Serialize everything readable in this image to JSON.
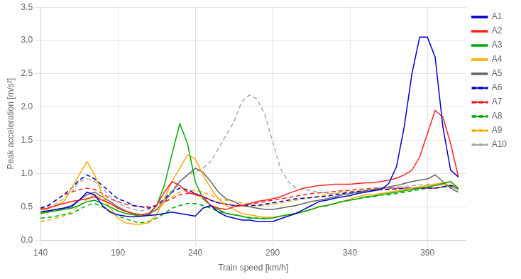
{
  "chart_data": {
    "type": "line",
    "x_label": "Train speed [km/h]",
    "y_label": "Peak acceleration [m/s²]",
    "x": [
      140,
      145,
      150,
      155,
      160,
      165,
      170,
      175,
      180,
      185,
      190,
      195,
      200,
      205,
      210,
      215,
      220,
      225,
      230,
      235,
      240,
      245,
      250,
      255,
      260,
      265,
      270,
      275,
      280,
      285,
      290,
      295,
      300,
      305,
      310,
      315,
      320,
      325,
      330,
      335,
      340,
      345,
      350,
      355,
      360,
      365,
      370,
      375,
      380,
      385,
      390,
      395,
      400,
      405,
      410
    ],
    "xlim": [
      140,
      415
    ],
    "xticks": [
      140,
      190,
      240,
      290,
      340,
      390
    ],
    "ylim": [
      0,
      3.5
    ],
    "yticks": [
      {
        "value": 0,
        "label": "0.0"
      },
      0.5,
      {
        "value": 1.0,
        "label": "1.0"
      },
      1.5,
      {
        "value": 2.0,
        "label": "2.0"
      },
      2.5,
      {
        "value": 3.0,
        "label": "3.0"
      },
      3.5
    ],
    "grid": true,
    "legend": "right",
    "series": [
      {
        "name": "A1",
        "color": "#0000cc",
        "line_style": "solid",
        "values": [
          0.42,
          0.44,
          0.46,
          0.48,
          0.5,
          0.6,
          0.72,
          0.68,
          0.52,
          0.42,
          0.38,
          0.36,
          0.35,
          0.36,
          0.37,
          0.38,
          0.4,
          0.42,
          0.4,
          0.38,
          0.36,
          0.48,
          0.52,
          0.42,
          0.36,
          0.33,
          0.3,
          0.3,
          0.28,
          0.28,
          0.28,
          0.32,
          0.36,
          0.4,
          0.46,
          0.52,
          0.58,
          0.6,
          0.63,
          0.65,
          0.67,
          0.7,
          0.72,
          0.74,
          0.76,
          0.85,
          1.1,
          1.7,
          2.5,
          3.05,
          3.05,
          2.75,
          1.7,
          1.05,
          0.95
        ]
      },
      {
        "name": "A2",
        "color": "#ff2020",
        "line_style": "solid",
        "values": [
          0.46,
          0.48,
          0.52,
          0.55,
          0.58,
          0.6,
          0.62,
          0.65,
          0.6,
          0.55,
          0.48,
          0.43,
          0.4,
          0.38,
          0.4,
          0.52,
          0.72,
          0.88,
          0.82,
          0.72,
          0.68,
          0.65,
          0.52,
          0.48,
          0.46,
          0.5,
          0.52,
          0.55,
          0.58,
          0.6,
          0.62,
          0.65,
          0.7,
          0.74,
          0.78,
          0.8,
          0.82,
          0.83,
          0.84,
          0.84,
          0.84,
          0.85,
          0.86,
          0.86,
          0.88,
          0.9,
          0.93,
          0.98,
          1.05,
          1.25,
          1.6,
          1.95,
          1.85,
          1.45,
          0.95
        ]
      },
      {
        "name": "A3",
        "color": "#00aa00",
        "line_style": "solid",
        "values": [
          0.4,
          0.42,
          0.44,
          0.46,
          0.48,
          0.52,
          0.58,
          0.6,
          0.55,
          0.5,
          0.44,
          0.4,
          0.38,
          0.36,
          0.38,
          0.52,
          0.82,
          1.3,
          1.75,
          1.45,
          0.88,
          0.62,
          0.52,
          0.46,
          0.4,
          0.38,
          0.36,
          0.33,
          0.33,
          0.32,
          0.33,
          0.36,
          0.38,
          0.4,
          0.43,
          0.46,
          0.5,
          0.52,
          0.55,
          0.58,
          0.6,
          0.62,
          0.65,
          0.66,
          0.68,
          0.7,
          0.72,
          0.74,
          0.76,
          0.78,
          0.8,
          0.82,
          0.85,
          0.88,
          0.78
        ]
      },
      {
        "name": "A4",
        "color": "#ffaa00",
        "line_style": "solid",
        "values": [
          0.42,
          0.48,
          0.52,
          0.58,
          0.78,
          0.98,
          1.18,
          0.98,
          0.68,
          0.48,
          0.33,
          0.26,
          0.24,
          0.24,
          0.26,
          0.38,
          0.62,
          0.88,
          1.08,
          1.28,
          1.22,
          0.98,
          0.78,
          0.62,
          0.52,
          0.46,
          0.4,
          0.38,
          0.36,
          0.34,
          0.34,
          0.36,
          0.38,
          0.4,
          0.43,
          0.46,
          0.5,
          0.52,
          0.55,
          0.58,
          0.62,
          0.65,
          0.68,
          0.68,
          0.7,
          0.72,
          0.74,
          0.76,
          0.78,
          0.8,
          0.82,
          0.84,
          0.86,
          0.88,
          0.78
        ]
      },
      {
        "name": "A5",
        "color": "#666666",
        "line_style": "solid",
        "values": [
          0.42,
          0.44,
          0.46,
          0.48,
          0.52,
          0.6,
          0.68,
          0.72,
          0.65,
          0.58,
          0.5,
          0.44,
          0.4,
          0.38,
          0.4,
          0.46,
          0.58,
          0.72,
          0.88,
          0.98,
          1.08,
          1.02,
          0.88,
          0.72,
          0.62,
          0.58,
          0.52,
          0.5,
          0.48,
          0.46,
          0.46,
          0.48,
          0.5,
          0.52,
          0.55,
          0.58,
          0.6,
          0.62,
          0.65,
          0.68,
          0.7,
          0.72,
          0.74,
          0.76,
          0.78,
          0.8,
          0.82,
          0.85,
          0.88,
          0.9,
          0.92,
          0.98,
          0.88,
          0.78,
          0.72
        ]
      },
      {
        "name": "A6",
        "color": "#0000cc",
        "line_style": "dashed",
        "values": [
          0.48,
          0.52,
          0.6,
          0.68,
          0.78,
          0.9,
          0.98,
          0.92,
          0.82,
          0.72,
          0.62,
          0.58,
          0.52,
          0.5,
          0.48,
          0.52,
          0.62,
          0.72,
          0.78,
          0.76,
          0.7,
          0.65,
          0.6,
          0.56,
          0.54,
          0.52,
          0.52,
          0.52,
          0.52,
          0.54,
          0.56,
          0.58,
          0.6,
          0.62,
          0.63,
          0.64,
          0.65,
          0.66,
          0.68,
          0.7,
          0.72,
          0.73,
          0.74,
          0.75,
          0.76,
          0.76,
          0.77,
          0.78,
          0.78,
          0.78,
          0.78,
          0.78,
          0.8,
          0.82,
          0.78
        ]
      },
      {
        "name": "A7",
        "color": "#ff2020",
        "line_style": "dashed",
        "values": [
          0.48,
          0.52,
          0.6,
          0.68,
          0.72,
          0.76,
          0.78,
          0.76,
          0.7,
          0.62,
          0.58,
          0.54,
          0.52,
          0.5,
          0.5,
          0.52,
          0.58,
          0.62,
          0.68,
          0.7,
          0.7,
          0.66,
          0.6,
          0.56,
          0.54,
          0.52,
          0.52,
          0.54,
          0.56,
          0.58,
          0.6,
          0.62,
          0.64,
          0.66,
          0.68,
          0.7,
          0.71,
          0.72,
          0.73,
          0.74,
          0.75,
          0.76,
          0.77,
          0.78,
          0.78,
          0.78,
          0.78,
          0.78,
          0.78,
          0.78,
          0.78,
          0.78,
          0.8,
          0.83,
          0.78
        ]
      },
      {
        "name": "A8",
        "color": "#00aa00",
        "line_style": "dashed",
        "values": [
          0.33,
          0.34,
          0.36,
          0.38,
          0.4,
          0.46,
          0.52,
          0.55,
          0.5,
          0.43,
          0.36,
          0.32,
          0.28,
          0.26,
          0.28,
          0.33,
          0.4,
          0.48,
          0.52,
          0.55,
          0.55,
          0.52,
          0.48,
          0.43,
          0.4,
          0.38,
          0.36,
          0.34,
          0.33,
          0.33,
          0.34,
          0.36,
          0.38,
          0.4,
          0.43,
          0.46,
          0.5,
          0.52,
          0.55,
          0.58,
          0.6,
          0.62,
          0.64,
          0.65,
          0.68,
          0.68,
          0.7,
          0.72,
          0.74,
          0.76,
          0.78,
          0.78,
          0.8,
          0.8,
          0.76
        ]
      },
      {
        "name": "A9",
        "color": "#ffaa00",
        "line_style": "dashed",
        "values": [
          0.28,
          0.3,
          0.33,
          0.36,
          0.43,
          0.52,
          0.62,
          0.68,
          0.62,
          0.55,
          0.48,
          0.43,
          0.38,
          0.36,
          0.38,
          0.46,
          0.55,
          0.65,
          0.72,
          0.75,
          0.75,
          0.72,
          0.68,
          0.62,
          0.6,
          0.58,
          0.56,
          0.54,
          0.52,
          0.52,
          0.54,
          0.56,
          0.58,
          0.6,
          0.62,
          0.64,
          0.66,
          0.68,
          0.7,
          0.72,
          0.73,
          0.74,
          0.75,
          0.76,
          0.76,
          0.76,
          0.77,
          0.78,
          0.78,
          0.78,
          0.8,
          0.82,
          0.83,
          0.83,
          0.78
        ]
      },
      {
        "name": "A10",
        "color": "#aaaaaa",
        "line_style": "dashed",
        "values": [
          0.46,
          0.5,
          0.55,
          0.62,
          0.72,
          0.88,
          0.92,
          0.88,
          0.78,
          0.65,
          0.56,
          0.5,
          0.46,
          0.44,
          0.46,
          0.52,
          0.62,
          0.75,
          0.88,
          0.98,
          1.02,
          1.08,
          1.18,
          1.38,
          1.58,
          1.78,
          2.08,
          2.18,
          2.12,
          1.88,
          1.48,
          1.08,
          0.88,
          0.78,
          0.76,
          0.74,
          0.72,
          0.7,
          0.7,
          0.7,
          0.7,
          0.72,
          0.74,
          0.76,
          0.78,
          0.78,
          0.8,
          0.8,
          0.82,
          0.83,
          0.84,
          0.84,
          0.83,
          0.8,
          0.76
        ]
      }
    ]
  }
}
